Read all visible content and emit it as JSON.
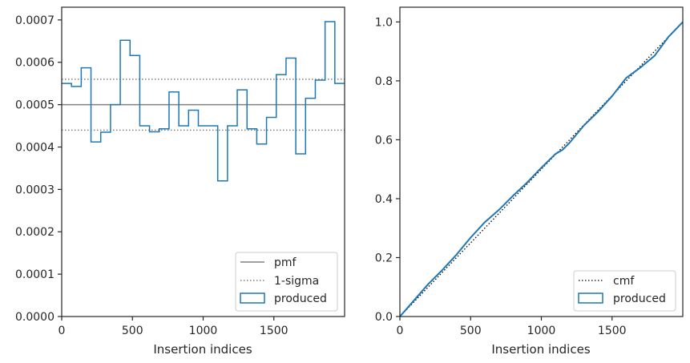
{
  "chart_data": [
    {
      "type": "step",
      "xlabel": "Insertion indices",
      "ylabel": "",
      "xlim": [
        0,
        2000
      ],
      "ylim": [
        0,
        0.00073
      ],
      "xticks": [
        0,
        500,
        1000,
        1500
      ],
      "xtick_labels": [
        "0",
        "500",
        "1000",
        "1500"
      ],
      "yticks": [
        0,
        0.0001,
        0.0002,
        0.0003,
        0.0004,
        0.0005,
        0.0006,
        0.0007
      ],
      "ytick_labels": [
        "0.0000",
        "0.0001",
        "0.0002",
        "0.0003",
        "0.0004",
        "0.0005",
        "0.0006",
        "0.0007"
      ],
      "legend_position": "lower-right",
      "grid": false,
      "reference_lines": [
        {
          "name": "pmf",
          "y": 0.0005,
          "style": "solid",
          "color": "#808080"
        },
        {
          "name": "1-sigma",
          "y": 0.00056,
          "style": "dotted",
          "color": "#808080"
        },
        {
          "name": "1-sigma",
          "y": 0.00044,
          "style": "dotted",
          "color": "#808080"
        }
      ],
      "series": [
        {
          "name": "produced",
          "color": "#1f77b4",
          "bin_edges": [
            0,
            69,
            138,
            207,
            276,
            345,
            414,
            483,
            552,
            621,
            690,
            759,
            828,
            897,
            966,
            1034,
            1103,
            1172,
            1241,
            1310,
            1379,
            1448,
            1517,
            1586,
            1655,
            1724,
            1793,
            1862,
            1931,
            2000
          ],
          "values": [
            0.00055,
            0.000543,
            0.000587,
            0.000412,
            0.000435,
            0.0005,
            0.000652,
            0.000616,
            0.00045,
            0.000436,
            0.000443,
            0.00053,
            0.00045,
            0.000487,
            0.00045,
            0.00045,
            0.00032,
            0.00045,
            0.000535,
            0.000443,
            0.000407,
            0.00047,
            0.000571,
            0.00061,
            0.000384,
            0.000515,
            0.000558,
            0.000696,
            0.00055
          ]
        }
      ],
      "legend": [
        "pmf",
        "1-sigma",
        "produced"
      ]
    },
    {
      "type": "line",
      "xlabel": "Insertion indices",
      "ylabel": "",
      "xlim": [
        0,
        2000
      ],
      "ylim": [
        0,
        1.05
      ],
      "xticks": [
        0,
        500,
        1000,
        1500
      ],
      "xtick_labels": [
        "0",
        "500",
        "1000",
        "1500"
      ],
      "yticks": [
        0,
        0.2,
        0.4,
        0.6,
        0.8,
        1.0
      ],
      "ytick_labels": [
        "0.0",
        "0.2",
        "0.4",
        "0.6",
        "0.8",
        "1.0"
      ],
      "legend_position": "lower-right",
      "grid": false,
      "series": [
        {
          "name": "cmf",
          "style": "dotted",
          "color": "#000000",
          "x": [
            0,
            2000
          ],
          "y": [
            0,
            1.0
          ]
        },
        {
          "name": "produced",
          "style": "solid",
          "color": "#1f77b4",
          "x": [
            0,
            100,
            200,
            300,
            400,
            500,
            600,
            700,
            800,
            900,
            1000,
            1100,
            1150,
            1200,
            1300,
            1400,
            1500,
            1600,
            1700,
            1800,
            1900,
            2000
          ],
          "y": [
            0,
            0.055,
            0.11,
            0.158,
            0.21,
            0.268,
            0.32,
            0.362,
            0.41,
            0.455,
            0.505,
            0.552,
            0.566,
            0.59,
            0.648,
            0.695,
            0.748,
            0.81,
            0.845,
            0.885,
            0.95,
            1.0
          ]
        }
      ],
      "legend": [
        "cmf",
        "produced"
      ]
    }
  ]
}
